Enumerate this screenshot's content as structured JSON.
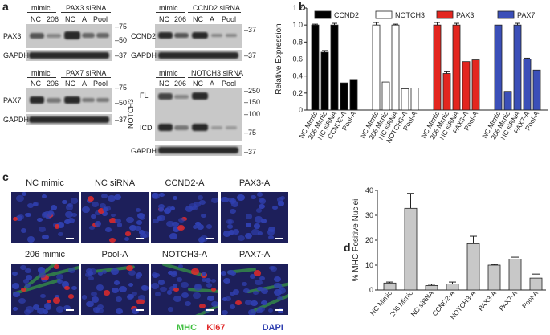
{
  "panel_letters": {
    "a": "a",
    "b": "b",
    "c": "c",
    "d": "d"
  },
  "blots": {
    "pax3_blot": {
      "header_left": "mimic",
      "header_right": "PAX3 siRNA",
      "lanes": [
        "NC",
        "206",
        "NC",
        "A",
        "Pool"
      ],
      "rows": [
        "PAX3",
        "GAPDH"
      ],
      "markers": [
        "75",
        "50",
        "37"
      ]
    },
    "ccnd2_blot": {
      "header_left": "mimic",
      "header_right": "CCND2 siRNA",
      "lanes": [
        "NC",
        "206",
        "NC",
        "A",
        "Pool"
      ],
      "rows": [
        "CCND2",
        "GAPDH"
      ],
      "markers": [
        "37",
        "37"
      ]
    },
    "pax7_blot": {
      "header_left": "mimic",
      "header_right": "PAX7 siRNA",
      "lanes": [
        "NC",
        "206",
        "NC",
        "A",
        "Pool"
      ],
      "rows": [
        "PAX7",
        "GAPDH"
      ],
      "markers": [
        "75",
        "50",
        "37"
      ]
    },
    "notch3_blot": {
      "header_left": "mimic",
      "header_right": "NOTCH3 siRNA",
      "lanes": [
        "NC",
        "206",
        "NC",
        "A",
        "Pool"
      ],
      "rows": [
        "FL",
        "ICD",
        "GAPDH"
      ],
      "side_label": "NOTCH3",
      "markers": [
        "250",
        "150",
        "100",
        "75",
        "37"
      ]
    }
  },
  "chart_b": {
    "type": "bar",
    "ylabel": "Relative Expression",
    "ylim": [
      0,
      1.2
    ],
    "yticks": [
      "0",
      "0.2",
      "0.4",
      "0.6",
      "0.8",
      "1.0",
      "1.2"
    ],
    "groups": [
      {
        "name": "CCND2",
        "color": "#000000",
        "categories": [
          "NC Mimic",
          "206 Mimic",
          "NC siRNA",
          "CCND2-A",
          "Pool-A"
        ],
        "values": [
          1.0,
          0.68,
          1.0,
          0.32,
          0.36
        ],
        "errors": [
          0.01,
          0.02,
          0.02,
          0,
          0
        ]
      },
      {
        "name": "NOTCH3",
        "color": "#ffffff",
        "categories": [
          "NC Mimic",
          "206 Mimic",
          "NC siRNA",
          "NOTCH3-A",
          "Pool-A"
        ],
        "values": [
          1.0,
          0.33,
          1.0,
          0.25,
          0.26
        ],
        "errors": [
          0.03,
          0,
          0.01,
          0,
          0
        ]
      },
      {
        "name": "PAX3",
        "color": "#e3261f",
        "categories": [
          "NC Mimic",
          "206 Mimic",
          "NC siRNA",
          "PAX3-A",
          "Pool-A"
        ],
        "values": [
          1.0,
          0.43,
          1.0,
          0.57,
          0.59
        ],
        "errors": [
          0.03,
          0.02,
          0.02,
          0,
          0
        ]
      },
      {
        "name": "PAX7",
        "color": "#3b4fb8",
        "categories": [
          "NC Mimic",
          "206 Mimic",
          "NC siRNA",
          "PAX7-A",
          "Pool-A"
        ],
        "values": [
          1.0,
          0.22,
          1.0,
          0.6,
          0.47
        ],
        "errors": [
          0,
          0,
          0.02,
          0.01,
          0
        ]
      }
    ]
  },
  "micrographs": {
    "row1": [
      "NC mimic",
      "NC siRNA",
      "CCND2-A",
      "PAX3-A"
    ],
    "row2": [
      "206 mimic",
      "Pool-A",
      "NOTCH3-A",
      "PAX7-A"
    ],
    "stain_mhc": "MHC",
    "stain_ki67": "Ki67",
    "stain_dapi": "DAPI",
    "colors": {
      "mhc": "#3fbf3f",
      "ki67": "#e02a2a",
      "dapi": "#3040b0"
    }
  },
  "chart_data": {
    "type": "bar",
    "ylabel": "% MHC Positive Nuclei",
    "ylim": [
      0,
      40
    ],
    "yticks": [
      "0",
      "10",
      "20",
      "30",
      "40"
    ],
    "categories": [
      "NC Mimic",
      "206 Mimic",
      "NC siRNA",
      "CCND2-A",
      "NOTCH3-A",
      "PAX3-A",
      "PAX7-A",
      "Pool-A"
    ],
    "values": [
      2.8,
      32.8,
      1.8,
      2.4,
      18.6,
      10.0,
      12.4,
      4.8
    ],
    "errors": [
      0.4,
      6.0,
      0.5,
      0.8,
      3.0,
      0.3,
      0.8,
      1.6
    ],
    "bar_color": "#c8c8c8"
  }
}
